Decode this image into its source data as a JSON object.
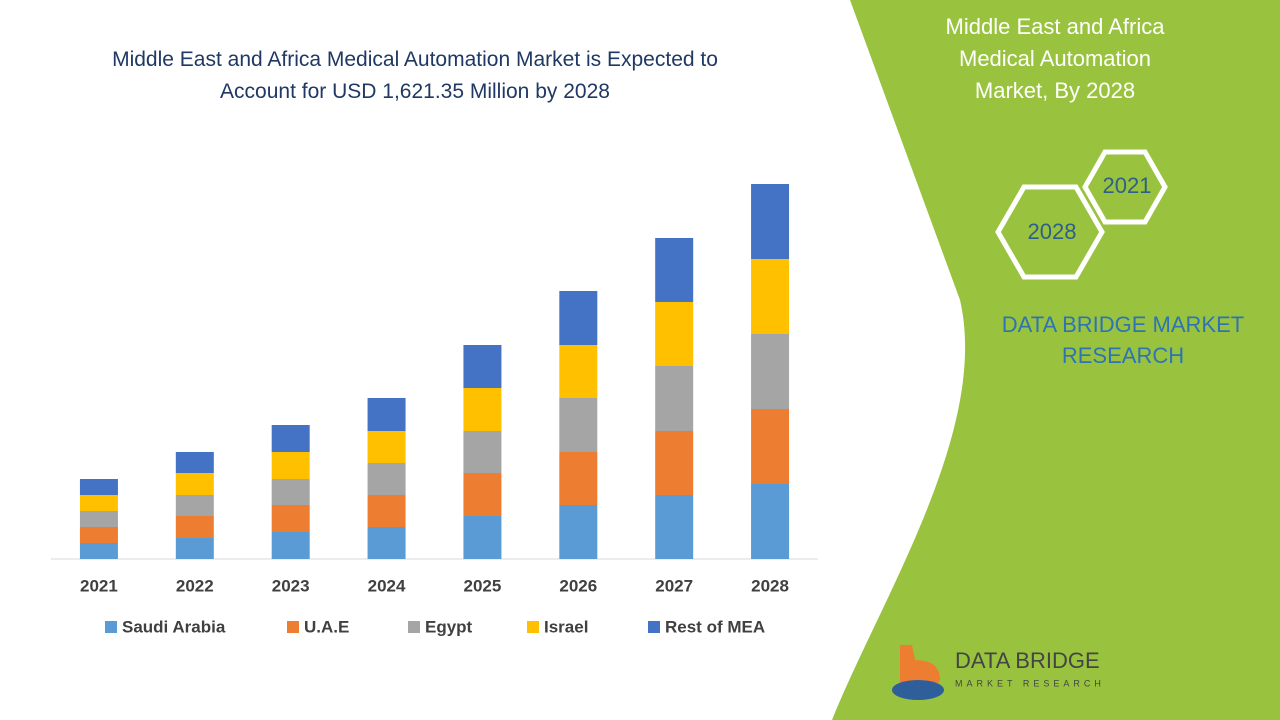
{
  "chart_data": {
    "type": "stacked-bar",
    "title": "Middle East and Africa Medical Automation Market is Expected to Account for USD 1,621.35  Million by 2028",
    "categories": [
      "2021",
      "2022",
      "2023",
      "2024",
      "2025",
      "2026",
      "2027",
      "2028"
    ],
    "series": [
      {
        "name": "Saudi Arabia",
        "color": "#5b9bd5",
        "values": [
          16,
          21,
          27,
          32,
          43,
          54,
          64,
          75
        ]
      },
      {
        "name": "U.A.E",
        "color": "#ed7d31",
        "values": [
          16,
          22,
          27,
          32,
          43,
          53,
          64,
          75
        ]
      },
      {
        "name": "Egypt",
        "color": "#a5a5a5",
        "values": [
          16,
          21,
          26,
          32,
          42,
          54,
          65,
          75
        ]
      },
      {
        "name": "Israel",
        "color": "#ffc000",
        "values": [
          16,
          22,
          27,
          32,
          43,
          53,
          64,
          75
        ]
      },
      {
        "name": "Rest of MEA",
        "color": "#4472c4",
        "values": [
          16,
          21,
          27,
          33,
          43,
          54,
          64,
          75
        ]
      }
    ]
  },
  "panel": {
    "heading": "Middle East and Africa Medical Automation Market, By 2028",
    "hex_years": [
      "2021",
      "2028"
    ],
    "brand": "DATA BRIDGE MARKET RESEARCH",
    "logo_name": "DATA BRIDGE",
    "logo_sub": "MARKET RESEARCH"
  }
}
